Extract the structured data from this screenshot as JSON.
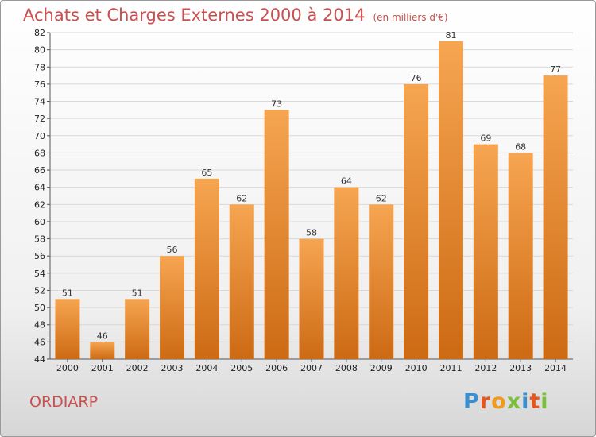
{
  "header": {
    "title": "Achats et Charges Externes 2000 à 2014",
    "unit": "(en milliers d'€)"
  },
  "footer": {
    "commune": "ORDIARP",
    "logo": "Proxiti"
  },
  "colors": {
    "bar_top": "#f6a551",
    "bar_bottom": "#cd6a14",
    "title": "#c8504f",
    "logo_letters": [
      "#3a8fd1",
      "#e2561f",
      "#f09a1e",
      "#7cbf3c",
      "#3a8fd1",
      "#e2561f",
      "#7cbf3c"
    ]
  },
  "chart_data": {
    "type": "bar",
    "title": "Achats et Charges Externes 2000 à 2014",
    "subtitle": "(en milliers d'€)",
    "categories": [
      "2000",
      "2001",
      "2002",
      "2003",
      "2004",
      "2005",
      "2006",
      "2007",
      "2008",
      "2009",
      "2010",
      "2011",
      "2012",
      "2013",
      "2014"
    ],
    "values": [
      51,
      46,
      51,
      56,
      65,
      62,
      73,
      58,
      64,
      62,
      76,
      81,
      69,
      68,
      77
    ],
    "ylim": [
      44,
      82
    ],
    "yticks": [
      44,
      46,
      48,
      50,
      52,
      54,
      56,
      58,
      60,
      62,
      64,
      66,
      68,
      70,
      72,
      74,
      76,
      78,
      80,
      82
    ],
    "grid": true,
    "legend": "none"
  }
}
